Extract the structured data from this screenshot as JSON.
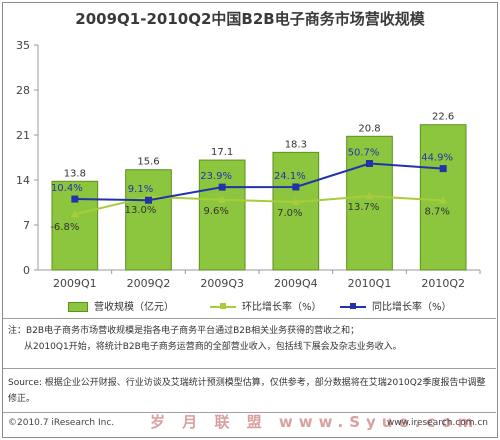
{
  "chart_data": {
    "type": "bar",
    "title": "2009Q1-2010Q2中国B2B电子商务市场营收规模",
    "categories": [
      "2009Q1",
      "2009Q2",
      "2009Q3",
      "2009Q4",
      "2010Q1",
      "2010Q2"
    ],
    "ylim": [
      0,
      35
    ],
    "yticks": [
      0,
      7,
      14,
      21,
      28,
      35
    ],
    "series": [
      {
        "name": "营收规模（亿元）",
        "type": "bar",
        "values": [
          13.8,
          15.6,
          17.1,
          18.3,
          20.8,
          22.6
        ],
        "labels": [
          "13.8",
          "15.6",
          "17.1",
          "18.3",
          "20.8",
          "22.6"
        ],
        "color": "#8cc63f"
      },
      {
        "name": "环比增长率（%）",
        "type": "line",
        "secondary": true,
        "values": [
          -6.8,
          13.0,
          9.6,
          7.0,
          13.7,
          8.7
        ],
        "labels": [
          "-6.8%",
          "13.0%",
          "9.6%",
          "7.0%",
          "13.7%",
          "8.7%"
        ],
        "color": "#a9cc3a"
      },
      {
        "name": "同比增长率（%）",
        "type": "line",
        "secondary": true,
        "values": [
          10.4,
          9.1,
          23.9,
          24.1,
          50.7,
          44.9
        ],
        "labels": [
          "10.4%",
          "9.1%",
          "23.9%",
          "24.1%",
          "50.7%",
          "44.9%"
        ],
        "color": "#2233aa"
      }
    ],
    "grid": false,
    "legend_position": "bottom"
  },
  "legend": {
    "bar": "营收规模（亿元）",
    "hb": "环比增长率（%）",
    "tb": "同比增长率（%）"
  },
  "note": {
    "line1": "注：B2B电子商务市场营收规模是指各电子商务平台通过B2B相关业务获得的营收之和；",
    "line2": "从2010Q1开始，将统计B2B电子商务运营商的全部营业收入，包括线下展会及杂志业务收入。"
  },
  "source": "Source: 根据企业公开财报、行业访谈及艾瑞统计预测模型估算，仅供参考，部分数据将在艾瑞2010Q2季度报告中调整修正。",
  "copyright": "©2010.7 iResearch Inc.",
  "website": "www.iresearch.com.cn",
  "watermark": "岁 月 联 盟  www.Syue.com"
}
